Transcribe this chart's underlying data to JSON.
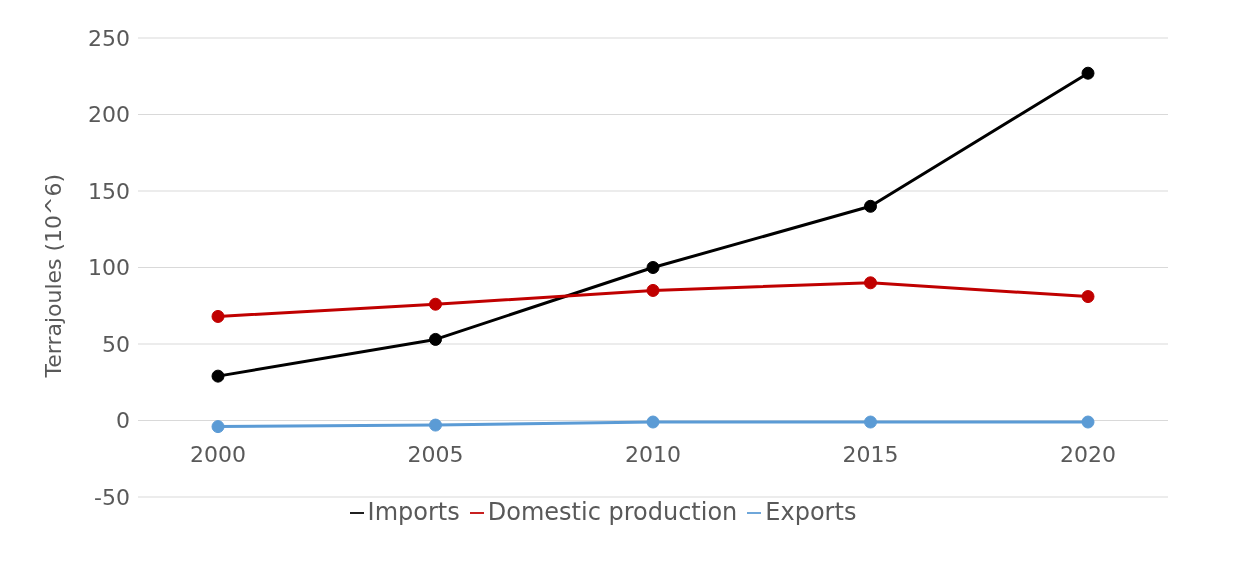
{
  "chart_data": {
    "type": "line",
    "ylabel": "Terrajoules (10^6)",
    "categories": [
      "2000",
      "2005",
      "2010",
      "2015",
      "2020"
    ],
    "series": [
      {
        "name": "Imports",
        "color": "#000000",
        "values": [
          29,
          53,
          100,
          140,
          227
        ]
      },
      {
        "name": "Domestic production",
        "color": "#c00000",
        "values": [
          68,
          76,
          85,
          90,
          81
        ]
      },
      {
        "name": "Exports",
        "color": "#5b9bd5",
        "values": [
          -4,
          -3,
          -1,
          -1,
          -1
        ]
      }
    ],
    "ylim": [
      -50,
      250
    ],
    "yticks": [
      -50,
      0,
      50,
      100,
      150,
      200,
      250
    ],
    "grid": "y",
    "legend": "bottom",
    "marker": "circle",
    "line_style": "solid"
  }
}
